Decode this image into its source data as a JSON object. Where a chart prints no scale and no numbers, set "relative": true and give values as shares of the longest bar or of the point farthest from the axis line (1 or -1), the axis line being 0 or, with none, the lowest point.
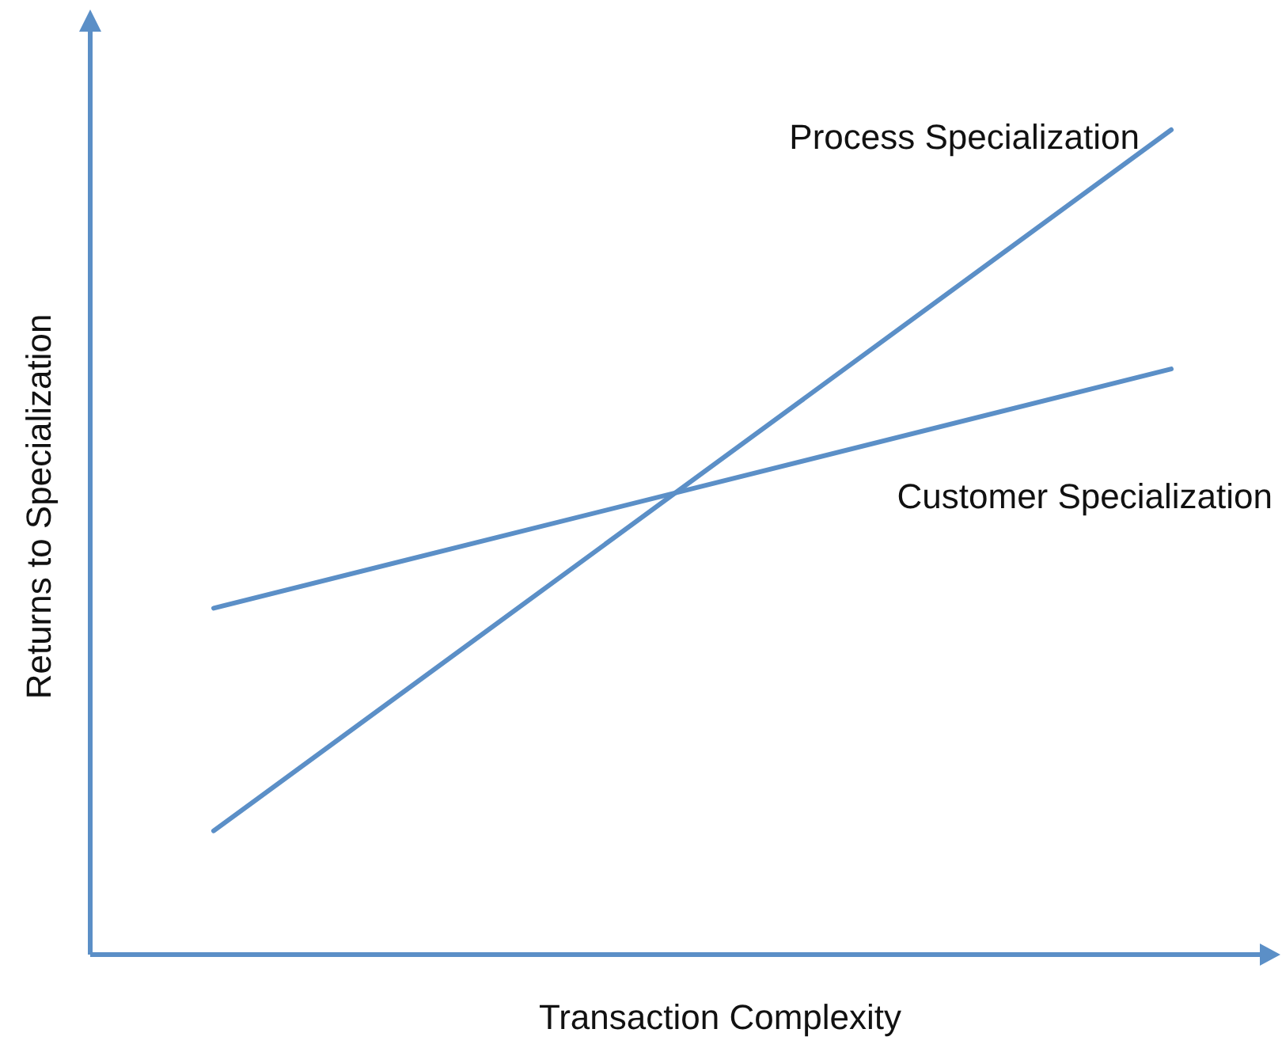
{
  "chart_data": {
    "type": "line",
    "relative": true,
    "xlabel": "Transaction Complexity",
    "ylabel": "Returns to Specialization",
    "categories": [
      null,
      null
    ],
    "series": [
      {
        "name": "Process Specialization",
        "color": "#5b8fc7",
        "values": [
          0.15,
          1
        ]
      },
      {
        "name": "Customer Specialization",
        "color": "#5b8fc7",
        "values": [
          0.42,
          0.71
        ]
      }
    ]
  }
}
